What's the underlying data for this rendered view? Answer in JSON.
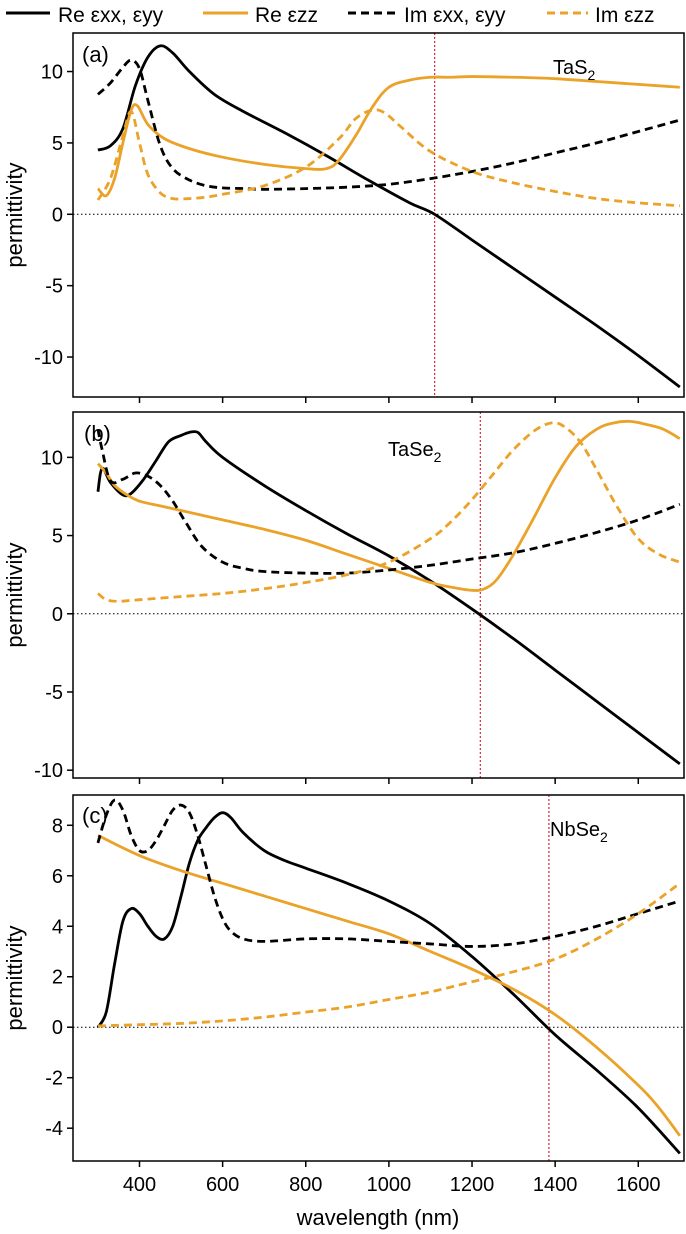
{
  "colors": {
    "black": "#000000",
    "orange": "#eba228",
    "red_marker": "#d7263d",
    "frame": "#000000"
  },
  "legend": [
    {
      "label": "Re εxx, εyy",
      "color": "#000000",
      "style": "solid"
    },
    {
      "label": "Re εzz",
      "color": "#eba228",
      "style": "solid"
    },
    {
      "label": "Im εxx, εyy",
      "color": "#000000",
      "style": "dashed"
    },
    {
      "label": "Im εzz",
      "color": "#eba228",
      "style": "dashed"
    }
  ],
  "xlabel": "wavelength (nm)",
  "chart_data": [
    {
      "type": "line",
      "panel": "(a)",
      "material": "TaS2",
      "ylabel": "permittivity",
      "xlim": [
        240,
        1710
      ],
      "ylim": [
        -12.8,
        12.7
      ],
      "yticks": [
        10,
        5,
        0,
        -5,
        -10
      ],
      "ytick_labels": [
        "10",
        "5",
        "0",
        "-5",
        "-10"
      ],
      "xticks": [
        400,
        600,
        800,
        1000,
        1200,
        1400,
        1600
      ],
      "marker_wavelength": 1110,
      "series": [
        {
          "name": "Re εxx, εyy",
          "color": "#000000",
          "dash": false,
          "x": [
            300,
            330,
            360,
            390,
            420,
            450,
            480,
            520,
            580,
            650,
            750,
            850,
            950,
            1050,
            1110,
            1200,
            1300,
            1400,
            1500,
            1600,
            1700
          ],
          "y": [
            4.5,
            4.8,
            6.0,
            9.0,
            11.0,
            11.8,
            11.3,
            10.0,
            8.4,
            7.2,
            5.7,
            4.1,
            2.4,
            0.8,
            0.0,
            -1.8,
            -3.8,
            -5.8,
            -7.8,
            -9.9,
            -12.1
          ]
        },
        {
          "name": "Re εzz",
          "color": "#eba228",
          "dash": false,
          "x": [
            300,
            320,
            340,
            360,
            380,
            395,
            420,
            460,
            520,
            600,
            700,
            800,
            850,
            880,
            920,
            960,
            1000,
            1050,
            1100,
            1150,
            1200,
            1300,
            1400,
            1500,
            1600,
            1700
          ],
          "y": [
            1.8,
            1.3,
            2.5,
            5.0,
            7.3,
            7.6,
            6.3,
            5.3,
            4.6,
            4.0,
            3.5,
            3.2,
            3.2,
            3.8,
            5.5,
            7.5,
            8.9,
            9.4,
            9.6,
            9.6,
            9.65,
            9.6,
            9.5,
            9.3,
            9.1,
            8.9
          ]
        },
        {
          "name": "Im εxx, εyy",
          "color": "#000000",
          "dash": true,
          "x": [
            300,
            330,
            360,
            380,
            400,
            420,
            450,
            480,
            520,
            560,
            600,
            650,
            700,
            800,
            900,
            1000,
            1100,
            1200,
            1300,
            1400,
            1500,
            1600,
            1700
          ],
          "y": [
            8.4,
            9.2,
            10.3,
            10.8,
            10.2,
            8.0,
            4.8,
            3.2,
            2.4,
            2.0,
            1.85,
            1.8,
            1.75,
            1.8,
            1.9,
            2.1,
            2.5,
            3.0,
            3.6,
            4.3,
            5.0,
            5.8,
            6.6
          ]
        },
        {
          "name": "Im εzz",
          "color": "#eba228",
          "dash": true,
          "x": [
            300,
            330,
            360,
            380,
            400,
            420,
            450,
            480,
            520,
            560,
            600,
            700,
            800,
            880,
            920,
            960,
            990,
            1030,
            1100,
            1200,
            1300,
            1400,
            1500,
            1600,
            1700
          ],
          "y": [
            1.0,
            2.5,
            5.5,
            7.2,
            5.0,
            2.8,
            1.5,
            1.1,
            1.1,
            1.2,
            1.4,
            2.0,
            3.3,
            5.3,
            6.7,
            7.3,
            7.1,
            6.1,
            4.4,
            3.0,
            2.2,
            1.6,
            1.1,
            0.8,
            0.6
          ]
        }
      ]
    },
    {
      "type": "line",
      "panel": "(b)",
      "material": "TaSe2",
      "ylabel": "permittivity",
      "xlim": [
        240,
        1710
      ],
      "ylim": [
        -10.5,
        12.9
      ],
      "yticks": [
        10,
        5,
        0,
        -5,
        -10
      ],
      "ytick_labels": [
        "10",
        "5",
        "0",
        "-5",
        "-10"
      ],
      "xticks": [
        400,
        600,
        800,
        1000,
        1200,
        1400,
        1600
      ],
      "marker_wavelength": 1220,
      "series": [
        {
          "name": "Re εxx, εyy",
          "color": "#000000",
          "dash": false,
          "x": [
            300,
            310,
            330,
            360,
            380,
            410,
            440,
            470,
            500,
            520,
            540,
            560,
            600,
            700,
            800,
            900,
            1000,
            1100,
            1200,
            1300,
            1400,
            1500,
            1600,
            1700
          ],
          "y": [
            7.8,
            9.3,
            8.4,
            7.6,
            7.7,
            8.6,
            9.8,
            11.0,
            11.4,
            11.6,
            11.6,
            11.0,
            10.0,
            8.2,
            6.6,
            5.1,
            3.7,
            2.1,
            0.3,
            -1.6,
            -3.6,
            -5.6,
            -7.6,
            -9.6
          ]
        },
        {
          "name": "Re εzz",
          "color": "#eba228",
          "dash": false,
          "x": [
            300,
            320,
            340,
            370,
            400,
            450,
            500,
            600,
            700,
            800,
            900,
            1000,
            1100,
            1150,
            1200,
            1230,
            1260,
            1300,
            1350,
            1400,
            1450,
            1500,
            1540,
            1580,
            1620,
            1660,
            1700
          ],
          "y": [
            9.6,
            9.0,
            8.2,
            7.6,
            7.2,
            6.9,
            6.6,
            6.0,
            5.4,
            4.7,
            3.8,
            2.9,
            2.0,
            1.7,
            1.5,
            1.6,
            2.2,
            3.8,
            6.2,
            8.7,
            10.7,
            11.8,
            12.2,
            12.3,
            12.1,
            11.8,
            11.2
          ]
        },
        {
          "name": "Im εxx, εyy",
          "color": "#000000",
          "dash": true,
          "x": [
            300,
            310,
            330,
            360,
            390,
            420,
            450,
            480,
            510,
            550,
            600,
            650,
            700,
            800,
            900,
            1000,
            1100,
            1200,
            1300,
            1400,
            1500,
            1600,
            1700
          ],
          "y": [
            11.8,
            10.5,
            8.5,
            8.6,
            9.0,
            8.8,
            8.2,
            7.2,
            5.9,
            4.3,
            3.3,
            2.9,
            2.7,
            2.6,
            2.6,
            2.8,
            3.1,
            3.5,
            3.9,
            4.5,
            5.2,
            6.0,
            7.0
          ]
        },
        {
          "name": "Im εzz",
          "color": "#eba228",
          "dash": true,
          "x": [
            300,
            320,
            350,
            400,
            500,
            600,
            700,
            800,
            900,
            1000,
            1100,
            1150,
            1200,
            1250,
            1300,
            1350,
            1390,
            1420,
            1460,
            1500,
            1550,
            1600,
            1650,
            1700
          ],
          "y": [
            1.3,
            0.9,
            0.8,
            0.9,
            1.1,
            1.3,
            1.6,
            2.0,
            2.5,
            3.3,
            4.8,
            5.9,
            7.3,
            8.9,
            10.5,
            11.7,
            12.2,
            12.0,
            11.0,
            9.2,
            6.8,
            4.8,
            3.8,
            3.3
          ]
        }
      ]
    },
    {
      "type": "line",
      "panel": "(c)",
      "material": "NbSe2",
      "ylabel": "permittivity",
      "xlim": [
        240,
        1710
      ],
      "ylim": [
        -5.3,
        9.2
      ],
      "yticks": [
        8,
        6,
        4,
        2,
        0,
        -2,
        -4
      ],
      "ytick_labels": [
        "8",
        "6",
        "4",
        "2",
        "0",
        "-2",
        "-4"
      ],
      "xticks": [
        400,
        600,
        800,
        1000,
        1200,
        1400,
        1600
      ],
      "xtick_labels": [
        "400",
        "600",
        "800",
        "1000",
        "1200",
        "1400",
        "1600"
      ],
      "marker_wavelength": 1385,
      "series": [
        {
          "name": "Re εxx, εyy",
          "color": "#000000",
          "dash": false,
          "x": [
            300,
            320,
            340,
            360,
            380,
            400,
            420,
            440,
            460,
            480,
            500,
            520,
            540,
            560,
            580,
            600,
            620,
            650,
            700,
            750,
            800,
            900,
            1000,
            1100,
            1200,
            1300,
            1400,
            1500,
            1600,
            1700
          ],
          "y": [
            0.0,
            0.6,
            2.5,
            4.2,
            4.7,
            4.5,
            4.0,
            3.6,
            3.5,
            4.0,
            5.2,
            6.5,
            7.4,
            7.9,
            8.3,
            8.5,
            8.3,
            7.7,
            7.0,
            6.6,
            6.3,
            5.7,
            5.0,
            4.1,
            2.8,
            1.3,
            -0.3,
            -1.7,
            -3.2,
            -5.0
          ]
        },
        {
          "name": "Re εzz",
          "color": "#eba228",
          "dash": false,
          "x": [
            300,
            400,
            500,
            600,
            700,
            800,
            900,
            1000,
            1100,
            1200,
            1300,
            1400,
            1500,
            1600,
            1650,
            1700
          ],
          "y": [
            7.6,
            6.8,
            6.2,
            5.7,
            5.2,
            4.7,
            4.2,
            3.7,
            3.0,
            2.3,
            1.5,
            0.5,
            -0.8,
            -2.3,
            -3.2,
            -4.3
          ]
        },
        {
          "name": "Im εxx, εyy",
          "color": "#000000",
          "dash": true,
          "x": [
            300,
            320,
            340,
            360,
            380,
            400,
            420,
            440,
            460,
            480,
            500,
            520,
            540,
            560,
            580,
            600,
            620,
            650,
            700,
            800,
            900,
            1000,
            1100,
            1200,
            1300,
            1400,
            1500,
            1600,
            1700
          ],
          "y": [
            7.3,
            8.4,
            9.0,
            8.6,
            7.6,
            7.0,
            7.0,
            7.4,
            8.0,
            8.6,
            8.8,
            8.5,
            7.6,
            6.4,
            5.2,
            4.3,
            3.8,
            3.5,
            3.4,
            3.5,
            3.5,
            3.4,
            3.3,
            3.2,
            3.3,
            3.6,
            4.0,
            4.5,
            5.0
          ]
        },
        {
          "name": "Im εzz",
          "color": "#eba228",
          "dash": true,
          "x": [
            300,
            400,
            500,
            600,
            700,
            800,
            900,
            1000,
            1100,
            1200,
            1300,
            1400,
            1500,
            1600,
            1700
          ],
          "y": [
            0.05,
            0.1,
            0.15,
            0.25,
            0.4,
            0.6,
            0.8,
            1.1,
            1.4,
            1.8,
            2.2,
            2.7,
            3.5,
            4.5,
            5.7
          ]
        }
      ]
    }
  ]
}
